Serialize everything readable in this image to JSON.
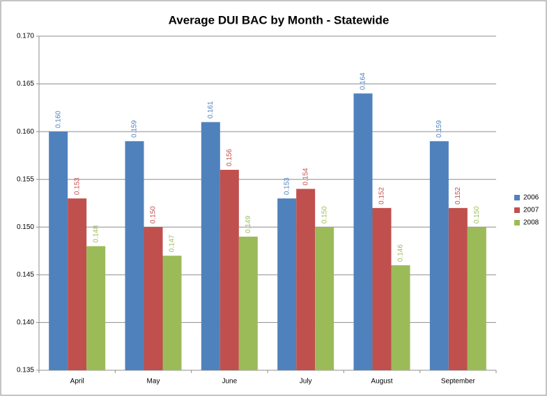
{
  "chart_data": {
    "type": "bar",
    "title": "Average DUI BAC by Month - Statewide",
    "categories": [
      "April",
      "May",
      "June",
      "July",
      "August",
      "September"
    ],
    "series": [
      {
        "name": "2006",
        "color": "#4f81bd",
        "values": [
          0.16,
          0.159,
          0.161,
          0.153,
          0.164,
          0.159
        ],
        "value_labels": [
          "0.160",
          "0.159",
          "0.161",
          "0.153",
          "0.164",
          "0.159"
        ]
      },
      {
        "name": "2007",
        "color": "#c0504d",
        "values": [
          0.153,
          0.15,
          0.156,
          0.154,
          0.152,
          0.152
        ],
        "value_labels": [
          "0.153",
          "0.150",
          "0.156",
          "0.154",
          "0.152",
          "0.152"
        ]
      },
      {
        "name": "2008",
        "color": "#9bbb59",
        "values": [
          0.148,
          0.147,
          0.149,
          0.15,
          0.146,
          0.15
        ],
        "value_labels": [
          "0.148",
          "0.147",
          "0.149",
          "0.150",
          "0.146",
          "0.150"
        ]
      }
    ],
    "ylim": [
      0.135,
      0.17
    ],
    "yticks": [
      0.135,
      {
        "value": 0.14,
        "label": "0.140"
      },
      0.145,
      {
        "value": 0.15,
        "label": "0.150"
      },
      0.155,
      {
        "value": 0.16,
        "label": "0.160"
      },
      0.165,
      {
        "value": 0.17,
        "label": "0.170"
      }
    ],
    "grid": true,
    "legend": "right"
  }
}
